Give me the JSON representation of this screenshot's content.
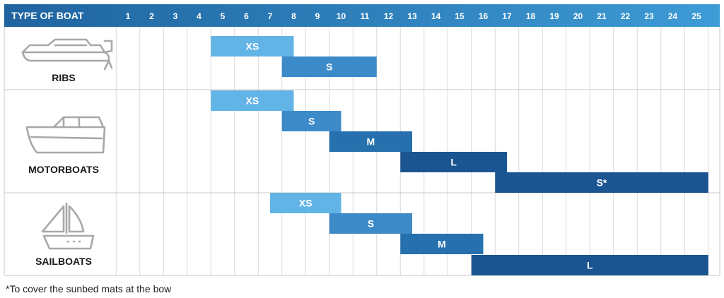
{
  "colors": {
    "header_start": "#1f64a0",
    "header_end": "#3d9bd5",
    "grid": "#d9d9d9",
    "row_border": "#c8c8c8",
    "size_colors": {
      "XS": "#62b4e6",
      "S": "#3d8ac8",
      "M": "#2670ae",
      "L": "#1b5591",
      "S*": "#1b5591"
    }
  },
  "chart_data": {
    "type": "bar",
    "orientation": "horizontal-range",
    "header_label": "TYPE OF BOAT",
    "x_ticks": [
      "1",
      "2",
      "3",
      "4",
      "5",
      "6",
      "7",
      "8",
      "9",
      "10",
      "11",
      "12",
      "13",
      "14",
      "15",
      "16",
      "17",
      "18",
      "19",
      "20",
      "21",
      "22",
      "23",
      "24",
      "25"
    ],
    "xlim": [
      1,
      25
    ],
    "grid": true,
    "categories": [
      {
        "name": "RIBS",
        "icon": "rib-boat-icon",
        "bars": [
          {
            "label": "XS",
            "start": 5,
            "end": 7.5
          },
          {
            "label": "S",
            "start": 8,
            "end": 11
          }
        ]
      },
      {
        "name": "MOTORBOATS",
        "icon": "motorboat-icon",
        "bars": [
          {
            "label": "XS",
            "start": 5,
            "end": 7.5
          },
          {
            "label": "S",
            "start": 8,
            "end": 9.5
          },
          {
            "label": "M",
            "start": 10,
            "end": 12.5
          },
          {
            "label": "L",
            "start": 13,
            "end": 16.5
          },
          {
            "label": "S*",
            "start": 17,
            "end": 25
          }
        ]
      },
      {
        "name": "SAILBOATS",
        "icon": "sailboat-icon",
        "bars": [
          {
            "label": "XS",
            "start": 7.5,
            "end": 9.5
          },
          {
            "label": "S",
            "start": 10,
            "end": 12.5
          },
          {
            "label": "M",
            "start": 13,
            "end": 15.5
          },
          {
            "label": "L",
            "start": 16,
            "end": 25
          }
        ]
      }
    ]
  },
  "footnote": "*To cover the sunbed mats at the bow"
}
